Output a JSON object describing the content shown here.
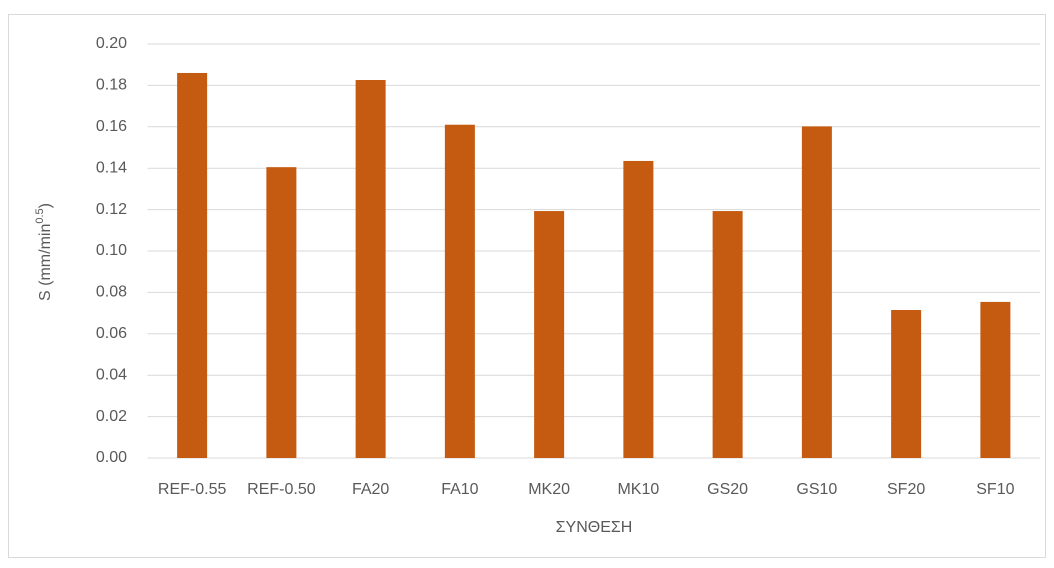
{
  "chart_data": {
    "type": "bar",
    "x_label": "ΣΥΝΘΕΣΗ",
    "y_label": [
      "S (mm/min",
      "0.5",
      ")"
    ],
    "categories": [
      "REF-0.55",
      "REF-0.50",
      "FA20",
      "FA10",
      "MK20",
      "MK10",
      "GS20",
      "GS10",
      "SF20",
      "SF10"
    ],
    "values": [
      0.186,
      0.1405,
      0.1826,
      0.161,
      0.1193,
      0.1435,
      0.1193,
      0.1602,
      0.0715,
      0.0754
    ],
    "color": "#c55a11",
    "ylim": [
      0,
      0.2
    ],
    "yticks": [
      {
        "value": 0,
        "label": "0.00"
      },
      {
        "value": 0.02,
        "label": "0.02"
      },
      {
        "value": 0.04,
        "label": "0.04"
      },
      {
        "value": 0.06,
        "label": "0.06"
      },
      {
        "value": 0.08,
        "label": "0.08"
      },
      {
        "value": 0.1,
        "label": "0.10"
      },
      {
        "value": 0.12,
        "label": "0.12"
      },
      {
        "value": 0.14,
        "label": "0.14"
      },
      {
        "value": 0.16,
        "label": "0.16"
      },
      {
        "value": 0.18,
        "label": "0.18"
      },
      {
        "value": 0.2,
        "label": "0.20"
      }
    ],
    "grid": true
  }
}
